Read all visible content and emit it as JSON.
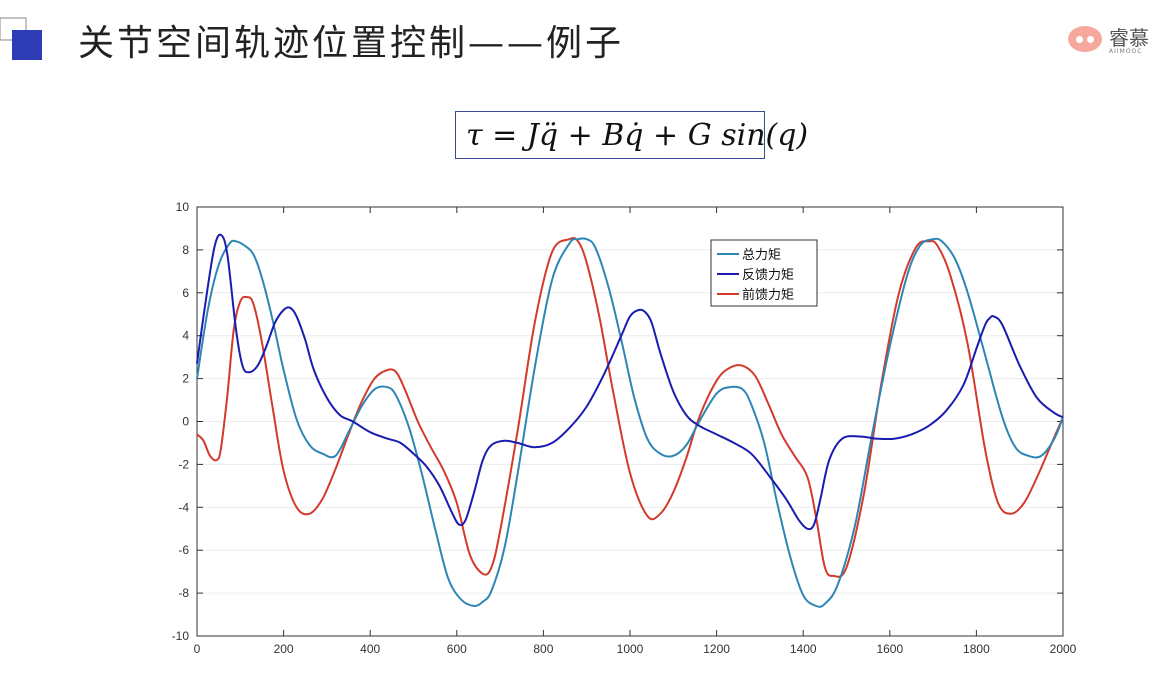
{
  "slide": {
    "title": "关节空间轨迹位置控制——例子",
    "logo_text": "睿慕",
    "logo_sub": "AIIMOOC"
  },
  "formula": {
    "text": "τ = Jq̈ + Bq̇ + G sin(q)"
  },
  "chart_data": {
    "type": "line",
    "title": "",
    "xlabel": "",
    "ylabel": "",
    "xlim": [
      0,
      2000
    ],
    "ylim": [
      -10,
      10
    ],
    "xticks": [
      0,
      200,
      400,
      600,
      800,
      1000,
      1200,
      1400,
      1600,
      1800,
      2000
    ],
    "yticks": [
      -10,
      -8,
      -6,
      -4,
      -2,
      0,
      2,
      4,
      6,
      8,
      10
    ],
    "grid": true,
    "legend_position": "top-right-center",
    "series": [
      {
        "name": "总力矩",
        "color": "#2e86b5",
        "x": [
          0,
          25,
          50,
          75,
          90,
          110,
          130,
          150,
          175,
          200,
          230,
          260,
          290,
          320,
          350,
          380,
          410,
          440,
          460,
          490,
          520,
          550,
          580,
          610,
          640,
          660,
          680,
          710,
          740,
          780,
          820,
          860,
          880,
          900,
          920,
          950,
          980,
          1010,
          1040,
          1070,
          1100,
          1130,
          1160,
          1200,
          1230,
          1260,
          1280,
          1310,
          1340,
          1370,
          1400,
          1430,
          1450,
          1480,
          1520,
          1560,
          1600,
          1640,
          1670,
          1700,
          1720,
          1750,
          1780,
          1820,
          1860,
          1890,
          1920,
          1950,
          1980,
          2000
        ],
        "y": [
          2.0,
          5.2,
          7.3,
          8.3,
          8.4,
          8.2,
          7.8,
          6.7,
          4.7,
          2.4,
          0.1,
          -1.1,
          -1.5,
          -1.6,
          -0.5,
          0.7,
          1.5,
          1.6,
          1.2,
          -0.3,
          -2.5,
          -5.0,
          -7.3,
          -8.3,
          -8.6,
          -8.4,
          -7.9,
          -5.9,
          -2.5,
          2.5,
          6.6,
          8.3,
          8.5,
          8.5,
          8.1,
          6.3,
          3.8,
          1.1,
          -0.8,
          -1.5,
          -1.6,
          -1.1,
          0.0,
          1.3,
          1.6,
          1.5,
          0.8,
          -1.0,
          -3.8,
          -6.3,
          -8.1,
          -8.6,
          -8.5,
          -7.6,
          -4.8,
          -0.5,
          3.5,
          6.8,
          8.2,
          8.5,
          8.4,
          7.6,
          6.0,
          3.1,
          0.2,
          -1.2,
          -1.6,
          -1.6,
          -0.8,
          0.2
        ]
      },
      {
        "name": "反馈力矩",
        "color": "#1b1bb0",
        "x": [
          0,
          20,
          40,
          55,
          70,
          90,
          105,
          120,
          140,
          160,
          180,
          200,
          215,
          230,
          250,
          270,
          300,
          330,
          360,
          400,
          440,
          470,
          500,
          530,
          560,
          590,
          605,
          620,
          640,
          660,
          680,
          710,
          740,
          780,
          820,
          860,
          900,
          940,
          980,
          1000,
          1020,
          1035,
          1050,
          1070,
          1100,
          1130,
          1160,
          1200,
          1240,
          1280,
          1320,
          1360,
          1390,
          1410,
          1425,
          1440,
          1460,
          1490,
          1530,
          1570,
          1610,
          1650,
          1690,
          1730,
          1770,
          1800,
          1820,
          1830,
          1840,
          1860,
          1900,
          1940,
          1980,
          2000
        ],
        "y": [
          2.7,
          5.6,
          8.1,
          8.7,
          7.8,
          4.3,
          2.6,
          2.3,
          2.6,
          3.5,
          4.6,
          5.2,
          5.3,
          4.9,
          3.8,
          2.4,
          1.1,
          0.3,
          0.0,
          -0.5,
          -0.8,
          -1.0,
          -1.5,
          -2.1,
          -3.0,
          -4.3,
          -4.8,
          -4.6,
          -3.3,
          -1.8,
          -1.1,
          -0.9,
          -1.0,
          -1.2,
          -1.0,
          -0.3,
          0.7,
          2.2,
          4.0,
          4.9,
          5.2,
          5.1,
          4.6,
          3.2,
          1.4,
          0.3,
          -0.2,
          -0.6,
          -1.0,
          -1.5,
          -2.5,
          -3.6,
          -4.6,
          -5.0,
          -4.8,
          -3.6,
          -1.8,
          -0.8,
          -0.7,
          -0.8,
          -0.8,
          -0.6,
          -0.2,
          0.5,
          1.7,
          3.4,
          4.5,
          4.8,
          4.9,
          4.5,
          2.6,
          1.1,
          0.4,
          0.2
        ]
      },
      {
        "name": "前馈力矩",
        "color": "#d43a2c",
        "x": [
          0,
          15,
          30,
          45,
          55,
          70,
          85,
          100,
          115,
          130,
          150,
          175,
          200,
          230,
          260,
          290,
          320,
          350,
          380,
          410,
          440,
          460,
          480,
          510,
          540,
          570,
          600,
          630,
          660,
          680,
          700,
          740,
          780,
          820,
          860,
          880,
          900,
          930,
          960,
          1000,
          1040,
          1070,
          1100,
          1130,
          1160,
          1200,
          1230,
          1260,
          1290,
          1320,
          1350,
          1380,
          1410,
          1430,
          1450,
          1470,
          1500,
          1540,
          1580,
          1620,
          1660,
          1690,
          1710,
          1740,
          1780,
          1820,
          1850,
          1880,
          1910,
          1940,
          1970,
          2000
        ],
        "y": [
          -0.6,
          -0.9,
          -1.6,
          -1.8,
          -1.3,
          1.2,
          4.3,
          5.6,
          5.8,
          5.5,
          3.7,
          0.6,
          -2.3,
          -4.0,
          -4.3,
          -3.6,
          -2.2,
          -0.6,
          0.9,
          2.0,
          2.4,
          2.3,
          1.5,
          0.0,
          -1.2,
          -2.3,
          -3.8,
          -6.2,
          -7.1,
          -6.8,
          -5.1,
          -0.5,
          4.6,
          7.9,
          8.5,
          8.4,
          7.4,
          4.8,
          1.5,
          -2.4,
          -4.4,
          -4.3,
          -3.3,
          -1.7,
          0.2,
          1.9,
          2.5,
          2.6,
          2.1,
          0.8,
          -0.6,
          -1.6,
          -2.6,
          -4.5,
          -6.8,
          -7.2,
          -6.8,
          -3.4,
          1.7,
          5.9,
          8.1,
          8.4,
          8.2,
          6.8,
          3.6,
          -1.3,
          -3.8,
          -4.3,
          -3.8,
          -2.6,
          -1.2,
          0.2
        ]
      }
    ]
  }
}
